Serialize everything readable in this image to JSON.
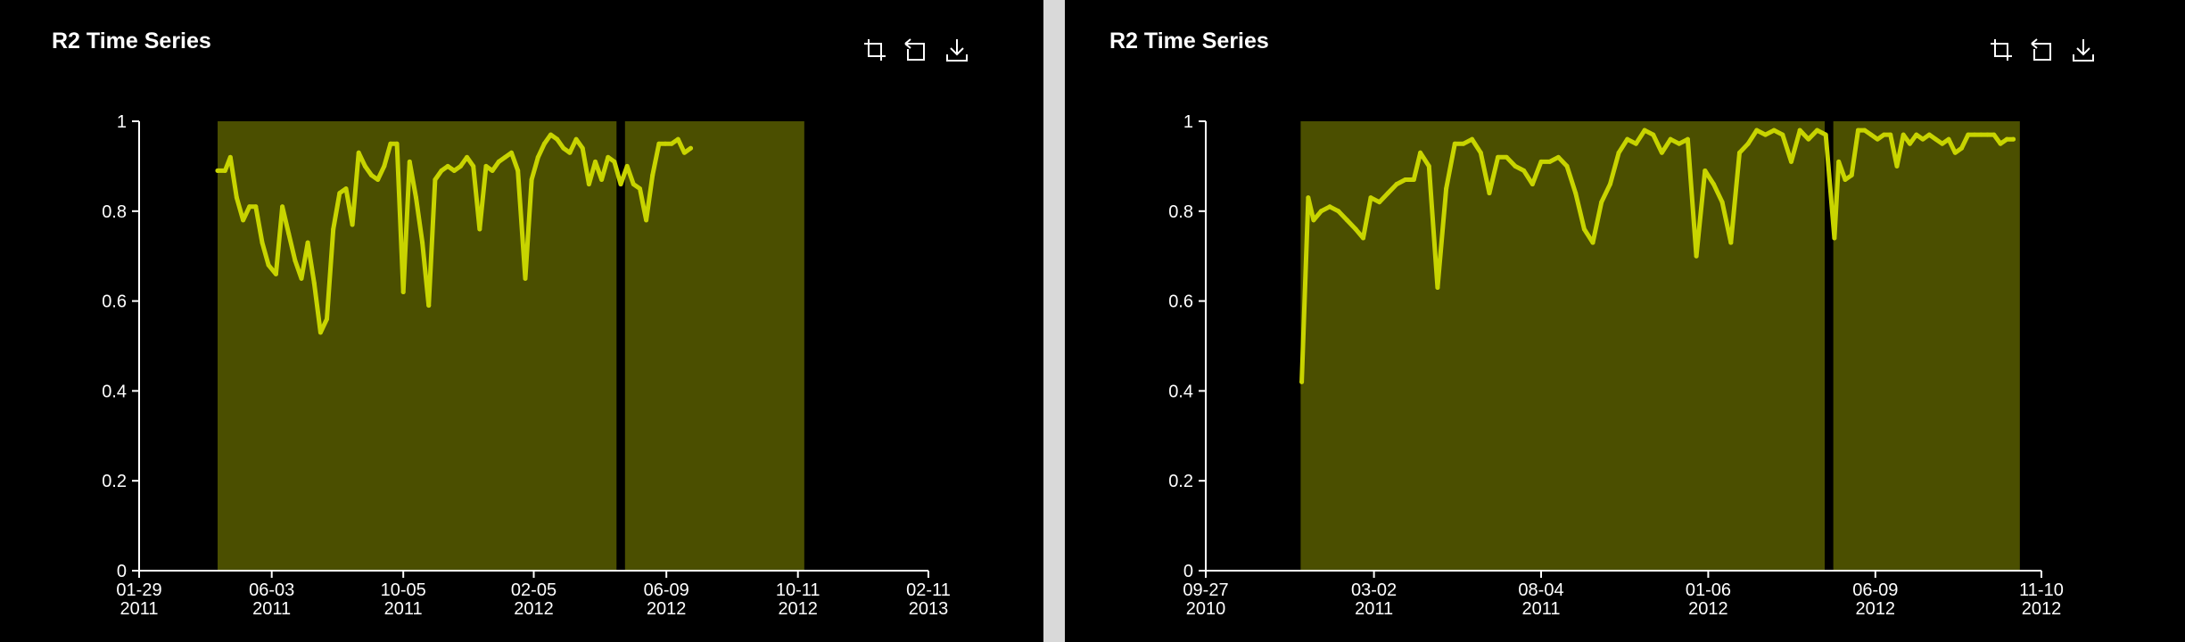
{
  "panels": [
    {
      "title": "R2 Time Series",
      "toolbar": {
        "icons": [
          "crop-icon",
          "reset-icon",
          "download-icon"
        ]
      }
    },
    {
      "title": "R2 Time Series",
      "toolbar": {
        "icons": [
          "crop-icon",
          "reset-icon",
          "download-icon"
        ]
      }
    }
  ],
  "chart_data": [
    {
      "type": "line",
      "title": "R2 Time Series",
      "xlabel": "",
      "ylabel": "",
      "x_axis": "date",
      "xlim": [
        "2011-01-29",
        "2013-02-11"
      ],
      "ylim": [
        0,
        1
      ],
      "grid": false,
      "line_color": "#c8d400",
      "band_color": "#4b4f00",
      "x_ticks": [
        {
          "date": "2011-01-29",
          "line1": "01-29",
          "line2": "2011"
        },
        {
          "date": "2011-06-03",
          "line1": "06-03",
          "line2": "2011"
        },
        {
          "date": "2011-10-05",
          "line1": "10-05",
          "line2": "2011"
        },
        {
          "date": "2012-02-05",
          "line1": "02-05",
          "line2": "2012"
        },
        {
          "date": "2012-06-09",
          "line1": "06-09",
          "line2": "2012"
        },
        {
          "date": "2012-10-11",
          "line1": "10-11",
          "line2": "2012"
        },
        {
          "date": "2013-02-11",
          "line1": "02-11",
          "line2": "2013"
        }
      ],
      "y_ticks": [
        "0",
        "0.2",
        "0.4",
        "0.6",
        "0.8",
        "1"
      ],
      "bands": [
        {
          "start": "2011-04-13",
          "end": "2012-04-23"
        },
        {
          "start": "2012-05-01",
          "end": "2012-10-17"
        }
      ],
      "series": [
        {
          "values": [
            [
              "2011-04-13",
              0.89
            ],
            [
              "2011-04-20",
              0.89
            ],
            [
              "2011-04-25",
              0.92
            ],
            [
              "2011-05-01",
              0.83
            ],
            [
              "2011-05-07",
              0.78
            ],
            [
              "2011-05-13",
              0.81
            ],
            [
              "2011-05-19",
              0.81
            ],
            [
              "2011-05-25",
              0.73
            ],
            [
              "2011-05-31",
              0.68
            ],
            [
              "2011-06-07",
              0.66
            ],
            [
              "2011-06-13",
              0.81
            ],
            [
              "2011-06-19",
              0.75
            ],
            [
              "2011-06-25",
              0.69
            ],
            [
              "2011-07-01",
              0.65
            ],
            [
              "2011-07-07",
              0.73
            ],
            [
              "2011-07-13",
              0.64
            ],
            [
              "2011-07-19",
              0.53
            ],
            [
              "2011-07-25",
              0.56
            ],
            [
              "2011-07-31",
              0.76
            ],
            [
              "2011-08-06",
              0.84
            ],
            [
              "2011-08-12",
              0.85
            ],
            [
              "2011-08-18",
              0.77
            ],
            [
              "2011-08-24",
              0.93
            ],
            [
              "2011-08-30",
              0.9
            ],
            [
              "2011-09-05",
              0.88
            ],
            [
              "2011-09-11",
              0.87
            ],
            [
              "2011-09-17",
              0.9
            ],
            [
              "2011-09-23",
              0.95
            ],
            [
              "2011-09-29",
              0.95
            ],
            [
              "2011-10-05",
              0.62
            ],
            [
              "2011-10-11",
              0.91
            ],
            [
              "2011-10-17",
              0.83
            ],
            [
              "2011-10-23",
              0.73
            ],
            [
              "2011-10-29",
              0.59
            ],
            [
              "2011-11-04",
              0.87
            ],
            [
              "2011-11-10",
              0.89
            ],
            [
              "2011-11-16",
              0.9
            ],
            [
              "2011-11-22",
              0.89
            ],
            [
              "2011-11-28",
              0.9
            ],
            [
              "2011-12-04",
              0.92
            ],
            [
              "2011-12-10",
              0.9
            ],
            [
              "2011-12-16",
              0.76
            ],
            [
              "2011-12-22",
              0.9
            ],
            [
              "2011-12-28",
              0.89
            ],
            [
              "2012-01-03",
              0.91
            ],
            [
              "2012-01-09",
              0.92
            ],
            [
              "2012-01-15",
              0.93
            ],
            [
              "2012-01-21",
              0.89
            ],
            [
              "2012-01-28",
              0.65
            ],
            [
              "2012-02-03",
              0.87
            ],
            [
              "2012-02-09",
              0.92
            ],
            [
              "2012-02-15",
              0.95
            ],
            [
              "2012-02-21",
              0.97
            ],
            [
              "2012-02-27",
              0.96
            ],
            [
              "2012-03-04",
              0.94
            ],
            [
              "2012-03-10",
              0.93
            ],
            [
              "2012-03-16",
              0.96
            ],
            [
              "2012-03-22",
              0.94
            ],
            [
              "2012-03-28",
              0.86
            ],
            [
              "2012-04-03",
              0.91
            ],
            [
              "2012-04-09",
              0.87
            ],
            [
              "2012-04-15",
              0.92
            ],
            [
              "2012-04-21",
              0.91
            ],
            [
              "2012-04-27",
              0.86
            ],
            [
              "2012-05-03",
              0.9
            ],
            [
              "2012-05-09",
              0.86
            ],
            [
              "2012-05-15",
              0.85
            ],
            [
              "2012-05-21",
              0.78
            ],
            [
              "2012-05-27",
              0.88
            ],
            [
              "2012-06-02",
              0.95
            ],
            [
              "2012-06-08",
              0.95
            ],
            [
              "2012-06-14",
              0.95
            ],
            [
              "2012-06-20",
              0.96
            ],
            [
              "2012-06-26",
              0.93
            ],
            [
              "2012-07-02",
              0.94
            ]
          ]
        }
      ]
    },
    {
      "type": "line",
      "title": "R2 Time Series",
      "xlabel": "",
      "ylabel": "",
      "x_axis": "date",
      "xlim": [
        "2010-09-27",
        "2012-11-10"
      ],
      "ylim": [
        0,
        1
      ],
      "grid": false,
      "line_color": "#c8d400",
      "band_color": "#4b4f00",
      "x_ticks": [
        {
          "date": "2010-09-27",
          "line1": "09-27",
          "line2": "2010"
        },
        {
          "date": "2011-03-02",
          "line1": "03-02",
          "line2": "2011"
        },
        {
          "date": "2011-08-04",
          "line1": "08-04",
          "line2": "2011"
        },
        {
          "date": "2012-01-06",
          "line1": "01-06",
          "line2": "2012"
        },
        {
          "date": "2012-06-09",
          "line1": "06-09",
          "line2": "2012"
        },
        {
          "date": "2012-11-10",
          "line1": "11-10",
          "line2": "2012"
        }
      ],
      "y_ticks": [
        "0",
        "0.2",
        "0.4",
        "0.6",
        "0.8",
        "1"
      ],
      "bands": [
        {
          "start": "2010-12-24",
          "end": "2012-04-23"
        },
        {
          "start": "2012-05-01",
          "end": "2012-10-21"
        }
      ],
      "series": [
        {
          "values": [
            [
              "2010-12-25",
              0.42
            ],
            [
              "2010-12-31",
              0.83
            ],
            [
              "2011-01-05",
              0.78
            ],
            [
              "2011-01-12",
              0.8
            ],
            [
              "2011-01-20",
              0.81
            ],
            [
              "2011-01-28",
              0.8
            ],
            [
              "2011-02-05",
              0.78
            ],
            [
              "2011-02-13",
              0.76
            ],
            [
              "2011-02-20",
              0.74
            ],
            [
              "2011-02-27",
              0.83
            ],
            [
              "2011-03-07",
              0.82
            ],
            [
              "2011-03-15",
              0.84
            ],
            [
              "2011-03-23",
              0.86
            ],
            [
              "2011-03-31",
              0.87
            ],
            [
              "2011-04-08",
              0.87
            ],
            [
              "2011-04-14",
              0.93
            ],
            [
              "2011-04-22",
              0.9
            ],
            [
              "2011-04-30",
              0.63
            ],
            [
              "2011-05-08",
              0.85
            ],
            [
              "2011-05-16",
              0.95
            ],
            [
              "2011-05-24",
              0.95
            ],
            [
              "2011-06-01",
              0.96
            ],
            [
              "2011-06-09",
              0.93
            ],
            [
              "2011-06-17",
              0.84
            ],
            [
              "2011-06-25",
              0.92
            ],
            [
              "2011-07-03",
              0.92
            ],
            [
              "2011-07-11",
              0.9
            ],
            [
              "2011-07-19",
              0.89
            ],
            [
              "2011-07-27",
              0.86
            ],
            [
              "2011-08-04",
              0.91
            ],
            [
              "2011-08-12",
              0.91
            ],
            [
              "2011-08-20",
              0.92
            ],
            [
              "2011-08-28",
              0.9
            ],
            [
              "2011-09-05",
              0.84
            ],
            [
              "2011-09-13",
              0.76
            ],
            [
              "2011-09-21",
              0.73
            ],
            [
              "2011-09-29",
              0.82
            ],
            [
              "2011-10-07",
              0.86
            ],
            [
              "2011-10-15",
              0.93
            ],
            [
              "2011-10-23",
              0.96
            ],
            [
              "2011-10-31",
              0.95
            ],
            [
              "2011-11-08",
              0.98
            ],
            [
              "2011-11-16",
              0.97
            ],
            [
              "2011-11-24",
              0.93
            ],
            [
              "2011-12-02",
              0.96
            ],
            [
              "2011-12-10",
              0.95
            ],
            [
              "2011-12-18",
              0.96
            ],
            [
              "2011-12-26",
              0.7
            ],
            [
              "2012-01-03",
              0.89
            ],
            [
              "2012-01-11",
              0.86
            ],
            [
              "2012-01-19",
              0.82
            ],
            [
              "2012-01-27",
              0.73
            ],
            [
              "2012-02-04",
              0.93
            ],
            [
              "2012-02-12",
              0.95
            ],
            [
              "2012-02-20",
              0.98
            ],
            [
              "2012-02-28",
              0.97
            ],
            [
              "2012-03-07",
              0.98
            ],
            [
              "2012-03-15",
              0.97
            ],
            [
              "2012-03-23",
              0.91
            ],
            [
              "2012-03-31",
              0.98
            ],
            [
              "2012-04-08",
              0.96
            ],
            [
              "2012-04-16",
              0.98
            ],
            [
              "2012-04-24",
              0.97
            ],
            [
              "2012-05-02",
              0.74
            ],
            [
              "2012-05-06",
              0.91
            ],
            [
              "2012-05-12",
              0.87
            ],
            [
              "2012-05-18",
              0.88
            ],
            [
              "2012-05-24",
              0.98
            ],
            [
              "2012-05-30",
              0.98
            ],
            [
              "2012-06-05",
              0.97
            ],
            [
              "2012-06-11",
              0.96
            ],
            [
              "2012-06-17",
              0.97
            ],
            [
              "2012-06-23",
              0.97
            ],
            [
              "2012-06-29",
              0.9
            ],
            [
              "2012-07-05",
              0.97
            ],
            [
              "2012-07-11",
              0.95
            ],
            [
              "2012-07-17",
              0.97
            ],
            [
              "2012-07-23",
              0.96
            ],
            [
              "2012-07-29",
              0.97
            ],
            [
              "2012-08-04",
              0.96
            ],
            [
              "2012-08-10",
              0.95
            ],
            [
              "2012-08-16",
              0.96
            ],
            [
              "2012-08-22",
              0.93
            ],
            [
              "2012-08-28",
              0.94
            ],
            [
              "2012-09-03",
              0.97
            ],
            [
              "2012-09-09",
              0.97
            ],
            [
              "2012-09-15",
              0.97
            ],
            [
              "2012-09-21",
              0.97
            ],
            [
              "2012-09-27",
              0.97
            ],
            [
              "2012-10-03",
              0.95
            ],
            [
              "2012-10-09",
              0.96
            ],
            [
              "2012-10-15",
              0.96
            ]
          ]
        }
      ]
    }
  ]
}
